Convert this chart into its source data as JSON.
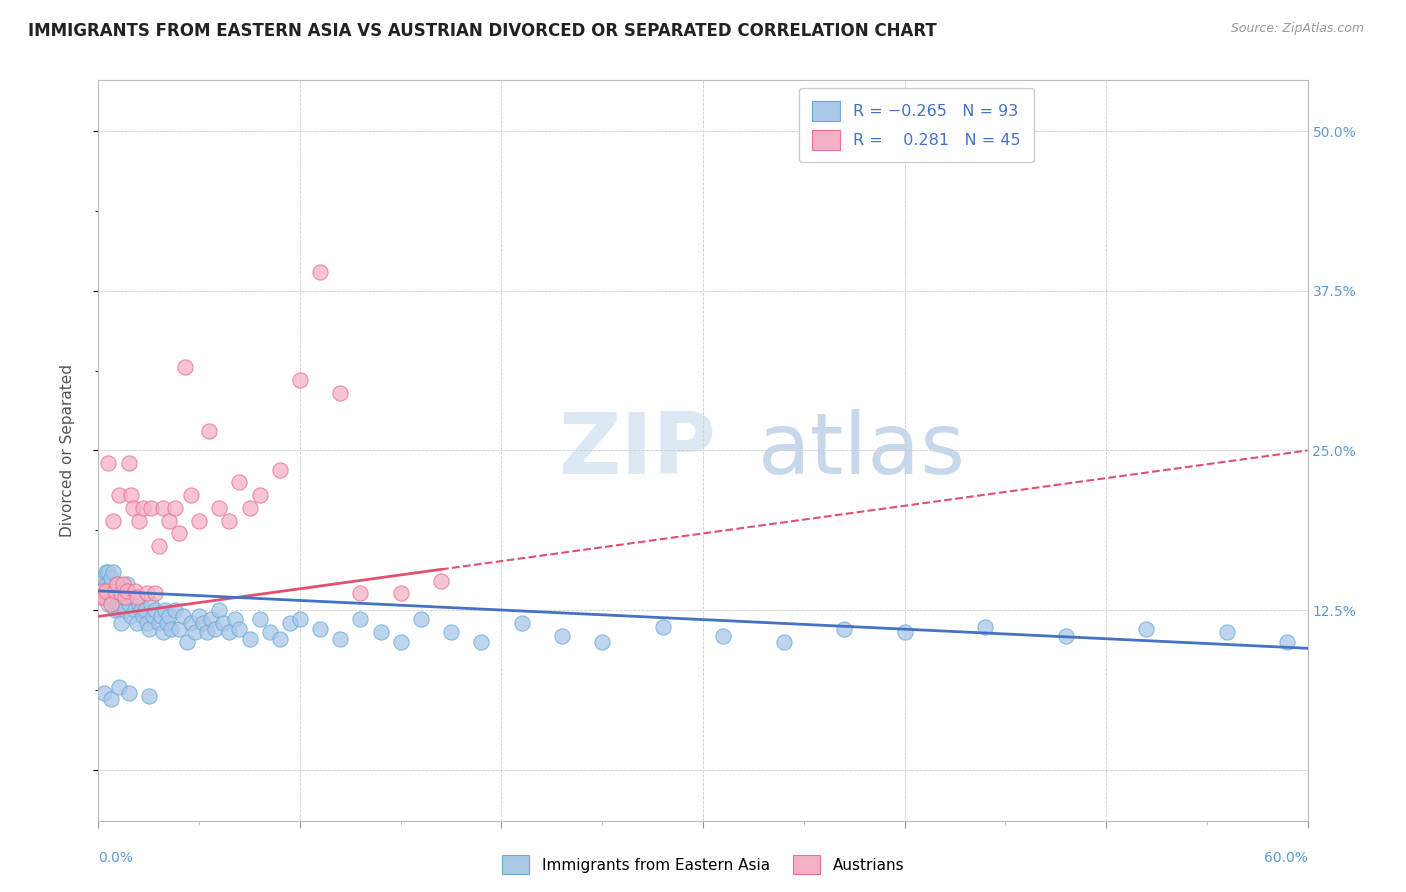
{
  "title": "IMMIGRANTS FROM EASTERN ASIA VS AUSTRIAN DIVORCED OR SEPARATED CORRELATION CHART",
  "source": "Source: ZipAtlas.com",
  "ylabel": "Divorced or Separated",
  "xmin": 0.0,
  "xmax": 0.6,
  "ymin": -0.04,
  "ymax": 0.54,
  "blue_color": "#aac8e8",
  "pink_color": "#f4b0c4",
  "blue_edge_color": "#6aaad8",
  "pink_edge_color": "#e87090",
  "blue_line_color": "#4472c4",
  "pink_line_color": "#e05070",
  "watermark_zip_color": "#dce8f4",
  "watermark_atlas_color": "#c8d8ec",
  "blue_scatter_x": [
    0.001,
    0.002,
    0.003,
    0.003,
    0.004,
    0.004,
    0.005,
    0.005,
    0.005,
    0.006,
    0.006,
    0.007,
    0.007,
    0.008,
    0.008,
    0.009,
    0.009,
    0.01,
    0.01,
    0.011,
    0.012,
    0.013,
    0.014,
    0.014,
    0.015,
    0.016,
    0.017,
    0.018,
    0.019,
    0.02,
    0.021,
    0.022,
    0.023,
    0.024,
    0.025,
    0.026,
    0.027,
    0.028,
    0.03,
    0.031,
    0.032,
    0.033,
    0.034,
    0.035,
    0.036,
    0.038,
    0.04,
    0.042,
    0.044,
    0.046,
    0.048,
    0.05,
    0.052,
    0.054,
    0.056,
    0.058,
    0.06,
    0.062,
    0.065,
    0.068,
    0.07,
    0.075,
    0.08,
    0.085,
    0.09,
    0.095,
    0.1,
    0.11,
    0.12,
    0.13,
    0.14,
    0.15,
    0.16,
    0.175,
    0.19,
    0.21,
    0.23,
    0.25,
    0.28,
    0.31,
    0.34,
    0.37,
    0.4,
    0.44,
    0.48,
    0.52,
    0.56,
    0.59,
    0.003,
    0.006,
    0.01,
    0.015,
    0.025
  ],
  "blue_scatter_y": [
    0.145,
    0.14,
    0.15,
    0.135,
    0.145,
    0.155,
    0.14,
    0.155,
    0.13,
    0.145,
    0.15,
    0.135,
    0.155,
    0.14,
    0.125,
    0.145,
    0.13,
    0.125,
    0.14,
    0.115,
    0.13,
    0.125,
    0.135,
    0.145,
    0.13,
    0.12,
    0.135,
    0.125,
    0.115,
    0.13,
    0.125,
    0.12,
    0.125,
    0.115,
    0.11,
    0.13,
    0.12,
    0.125,
    0.115,
    0.12,
    0.108,
    0.125,
    0.115,
    0.12,
    0.11,
    0.125,
    0.11,
    0.12,
    0.1,
    0.115,
    0.108,
    0.12,
    0.115,
    0.108,
    0.118,
    0.11,
    0.125,
    0.115,
    0.108,
    0.118,
    0.11,
    0.102,
    0.118,
    0.108,
    0.102,
    0.115,
    0.118,
    0.11,
    0.102,
    0.118,
    0.108,
    0.1,
    0.118,
    0.108,
    0.1,
    0.115,
    0.105,
    0.1,
    0.112,
    0.105,
    0.1,
    0.11,
    0.108,
    0.112,
    0.105,
    0.11,
    0.108,
    0.1,
    0.06,
    0.055,
    0.065,
    0.06,
    0.058
  ],
  "pink_scatter_x": [
    0.001,
    0.002,
    0.003,
    0.004,
    0.005,
    0.006,
    0.007,
    0.008,
    0.009,
    0.01,
    0.011,
    0.012,
    0.013,
    0.014,
    0.015,
    0.016,
    0.017,
    0.018,
    0.019,
    0.02,
    0.022,
    0.024,
    0.026,
    0.028,
    0.03,
    0.032,
    0.035,
    0.038,
    0.04,
    0.043,
    0.046,
    0.05,
    0.055,
    0.06,
    0.065,
    0.07,
    0.075,
    0.08,
    0.09,
    0.1,
    0.11,
    0.12,
    0.13,
    0.15,
    0.17
  ],
  "pink_scatter_y": [
    0.135,
    0.14,
    0.135,
    0.14,
    0.24,
    0.13,
    0.195,
    0.14,
    0.145,
    0.215,
    0.138,
    0.145,
    0.135,
    0.14,
    0.24,
    0.215,
    0.205,
    0.14,
    0.135,
    0.195,
    0.205,
    0.138,
    0.205,
    0.138,
    0.175,
    0.205,
    0.195,
    0.205,
    0.185,
    0.315,
    0.215,
    0.195,
    0.265,
    0.205,
    0.195,
    0.225,
    0.205,
    0.215,
    0.235,
    0.305,
    0.39,
    0.295,
    0.138,
    0.138,
    0.148
  ],
  "blue_trend_start_y": 0.14,
  "blue_trend_end_y": 0.095,
  "pink_trend_start_y": 0.12,
  "pink_trend_end_y": 0.25
}
